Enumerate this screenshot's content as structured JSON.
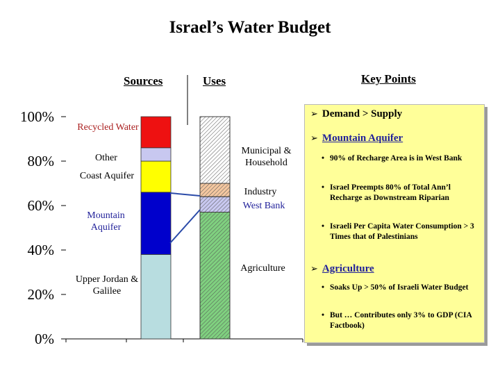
{
  "title": "Israel’s Water Budget",
  "headers": {
    "sources": "Sources",
    "uses": "Uses",
    "key_points": "Key Points"
  },
  "chart_data": {
    "type": "bar",
    "ylim": [
      0,
      100
    ],
    "y_ticks": [
      "0%",
      "20%",
      "40%",
      "60%",
      "80%",
      "100%"
    ],
    "bars": [
      {
        "name": "Sources",
        "segments": [
          {
            "label": "Upper Jordan & Galilee",
            "value": 38,
            "color": "#b8dde0"
          },
          {
            "label": "Mountain Aquifer",
            "value": 28,
            "color": "#0000cc"
          },
          {
            "label": "Coast Aquifer",
            "value": 14,
            "color": "#ffff00"
          },
          {
            "label": "Other",
            "value": 6,
            "color": "#c8c8f0"
          },
          {
            "label": "Recycled Water",
            "value": 14,
            "color": "#ee1111"
          }
        ]
      },
      {
        "name": "Uses",
        "segments": [
          {
            "label": "Agriculture",
            "value": 57,
            "color": "#7fd07f",
            "hatch": true
          },
          {
            "label": "West Bank",
            "value": 7,
            "color": "#c8c8f0",
            "hatch": true
          },
          {
            "label": "Industry",
            "value": 6,
            "color": "#f4c7a0",
            "hatch": true
          },
          {
            "label": "Municipal & Household",
            "value": 30,
            "color": "#ffffff",
            "hatch": true
          }
        ]
      }
    ]
  },
  "labels": {
    "recycled": "Recycled Water",
    "other": "Other",
    "coast": "Coast Aquifer",
    "mountain": "Mountain Aquifer",
    "upper": "Upper Jordan & Galilee",
    "municipal": "Municipal & Household",
    "industry": "Industry",
    "westbank": "West Bank",
    "agriculture": "Agriculture"
  },
  "key_points": {
    "demand": "Demand > Supply",
    "mountain": "Mountain Aquifer",
    "m1": "90% of Recharge Area is in West Bank",
    "m2": "Israel Preempts 80% of Total Ann’l Recharge as Downstream Riparian",
    "m3": "Israeli Per Capita Water Consumption > 3 Times that of Palestinians",
    "agriculture": "Agriculture",
    "a1": "Soaks Up > 50% of Israeli Water Budget",
    "a2": "But … Contributes only 3% to GDP (CIA Factbook)"
  }
}
